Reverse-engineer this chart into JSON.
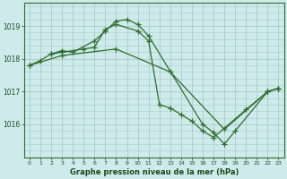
{
  "title": "Graphe pression niveau de la mer (hPa)",
  "background_color": "#ceeaea",
  "grid_color": "#aacccc",
  "line_color": "#2d6e2d",
  "hours": [
    0,
    1,
    2,
    3,
    4,
    5,
    6,
    7,
    8,
    9,
    10,
    11,
    12,
    13,
    14,
    15,
    16,
    17,
    18,
    19,
    20,
    21,
    22,
    23
  ],
  "line1_x": [
    0,
    1,
    2,
    3,
    4,
    6,
    7,
    8,
    9,
    10,
    11,
    16,
    17,
    18,
    19,
    22,
    23
  ],
  "line1_y": [
    1017.8,
    1017.95,
    1018.15,
    1018.25,
    1018.2,
    1018.55,
    1018.85,
    1019.15,
    1019.2,
    1019.05,
    1018.7,
    1016.0,
    1015.75,
    1015.4,
    1015.8,
    1017.0,
    1017.1
  ],
  "line2_x": [
    2,
    3,
    5,
    6,
    7,
    8,
    10,
    11,
    12,
    13,
    14,
    15,
    16,
    17,
    20,
    22,
    23
  ],
  "line2_y": [
    1018.15,
    1018.2,
    1018.3,
    1018.35,
    1018.9,
    1019.05,
    1018.85,
    1018.55,
    1016.6,
    1016.5,
    1016.3,
    1016.1,
    1015.8,
    1015.6,
    1016.45,
    1017.0,
    1017.1
  ],
  "line3_x": [
    0,
    3,
    8,
    13,
    18,
    22,
    23
  ],
  "line3_y": [
    1017.8,
    1018.1,
    1018.3,
    1017.6,
    1015.85,
    1017.0,
    1017.1
  ],
  "ylim": [
    1015.0,
    1019.7
  ],
  "yticks": [
    1016,
    1017,
    1018,
    1019
  ],
  "xlim": [
    -0.5,
    23.5
  ]
}
